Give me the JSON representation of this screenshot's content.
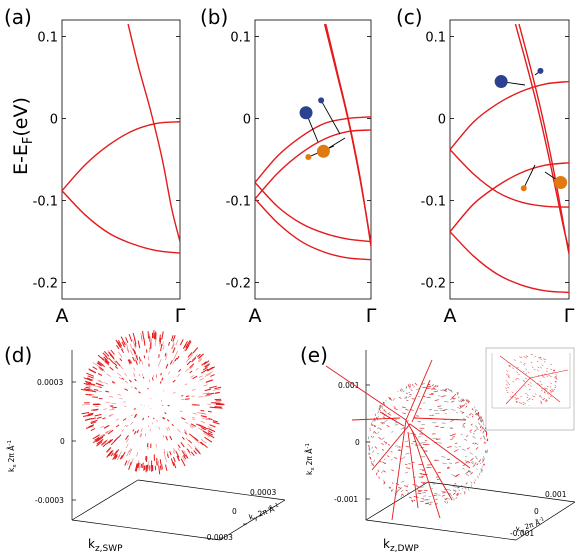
{
  "figure": {
    "panel_letters": [
      "(a)",
      "(b)",
      "(c)",
      "(d)",
      "(e)"
    ],
    "line_color": "#e41a1c",
    "blue_marker_color": "#2c4190",
    "orange_marker_color": "#e07a10"
  },
  "chart_data": [
    {
      "panel": "(a)",
      "type": "line",
      "ylabel": "E-E",
      "ylabel_sub": "F",
      "ylabel_unit": "(eV)",
      "xticks": [
        "A",
        "Γ"
      ],
      "yticks": [
        "0.1",
        "0",
        "-0.1",
        "-0.2"
      ],
      "ylim": [
        -0.22,
        0.12
      ],
      "x": [
        0,
        0.2,
        0.4,
        0.6,
        0.8,
        1.0
      ],
      "series": [
        {
          "values": [
            -0.088,
            -0.056,
            -0.032,
            -0.015,
            -0.006,
            -0.004
          ]
        },
        {
          "values": [
            -0.088,
            -0.118,
            -0.14,
            -0.153,
            -0.161,
            -0.164
          ]
        },
        {
          "x": [
            0.56,
            0.65,
            0.75,
            0.85,
            0.93,
            1.0
          ],
          "values": [
            0.115,
            0.062,
            0.01,
            -0.05,
            -0.11,
            -0.15
          ]
        }
      ]
    },
    {
      "panel": "(b)",
      "type": "line",
      "xticks": [
        "A",
        "Γ"
      ],
      "yticks": [
        "0.1",
        "0",
        "-0.1",
        "-0.2"
      ],
      "ylim": [
        -0.22,
        0.12
      ],
      "x": [
        0,
        0.2,
        0.4,
        0.6,
        0.8,
        1.0
      ],
      "series": [
        {
          "values": [
            -0.078,
            -0.045,
            -0.022,
            -0.006,
            0.0,
            0.002
          ]
        },
        {
          "values": [
            -0.098,
            -0.066,
            -0.042,
            -0.025,
            -0.016,
            -0.014
          ]
        },
        {
          "values": [
            -0.078,
            -0.108,
            -0.128,
            -0.14,
            -0.147,
            -0.15
          ]
        },
        {
          "values": [
            -0.098,
            -0.128,
            -0.15,
            -0.163,
            -0.17,
            -0.172
          ]
        },
        {
          "x": [
            0.6,
            0.7,
            0.8,
            0.9,
            1.0
          ],
          "values": [
            0.115,
            0.058,
            0.0,
            -0.07,
            -0.152
          ]
        },
        {
          "x": [
            0.61,
            0.71,
            0.81,
            0.91,
            1.0
          ],
          "values": [
            0.115,
            0.056,
            -0.004,
            -0.075,
            -0.156
          ]
        }
      ],
      "markers": [
        {
          "x": 0.44,
          "y": 0.007,
          "size": "large",
          "color": "blue"
        },
        {
          "x": 0.57,
          "y": 0.022,
          "size": "small",
          "color": "blue"
        },
        {
          "x": 0.46,
          "y": -0.047,
          "size": "small",
          "color": "orange"
        },
        {
          "x": 0.59,
          "y": -0.04,
          "size": "large",
          "color": "orange"
        }
      ]
    },
    {
      "panel": "(c)",
      "type": "line",
      "xticks": [
        "A",
        "Γ"
      ],
      "yticks": [
        "0.1",
        "0",
        "-0.1",
        "-0.2"
      ],
      "ylim": [
        -0.22,
        0.12
      ],
      "x": [
        0,
        0.2,
        0.4,
        0.6,
        0.8,
        1.0
      ],
      "series": [
        {
          "values": [
            -0.038,
            -0.004,
            0.018,
            0.033,
            0.042,
            0.045
          ]
        },
        {
          "values": [
            -0.038,
            -0.068,
            -0.09,
            -0.102,
            -0.107,
            -0.108
          ]
        },
        {
          "values": [
            -0.138,
            -0.104,
            -0.082,
            -0.066,
            -0.057,
            -0.054
          ]
        },
        {
          "values": [
            -0.138,
            -0.168,
            -0.19,
            -0.203,
            -0.21,
            -0.212
          ]
        },
        {
          "x": [
            0.55,
            0.65,
            0.75,
            0.85,
            0.95,
            1.0
          ],
          "values": [
            0.115,
            0.062,
            0.005,
            -0.06,
            -0.13,
            -0.16
          ]
        },
        {
          "x": [
            0.58,
            0.68,
            0.78,
            0.88,
            0.98,
            1.0
          ],
          "values": [
            0.115,
            0.06,
            0.0,
            -0.07,
            -0.15,
            -0.165
          ]
        }
      ],
      "markers": [
        {
          "x": 0.43,
          "y": 0.045,
          "size": "large",
          "color": "blue"
        },
        {
          "x": 0.76,
          "y": 0.058,
          "size": "small",
          "color": "blue"
        },
        {
          "x": 0.62,
          "y": -0.085,
          "size": "small",
          "color": "orange"
        },
        {
          "x": 0.93,
          "y": -0.078,
          "size": "large",
          "color": "orange"
        }
      ]
    },
    {
      "panel": "(d)",
      "type": "scatter",
      "description_labels": {
        "xlabel": "k",
        "xlabel_sub": "z,SWP",
        "ylabel": "k",
        "ylabel_sub": "y",
        "ylabel_unit": "2π Å",
        "ylabel_exp": "-1",
        "zlabel": "k",
        "zlabel_sub": "x",
        "zlabel_unit": "2π Å",
        "zlabel_exp": "-1"
      },
      "zticks": [
        "0.0003",
        "0",
        "-0.0003"
      ],
      "yticks": [
        "0.0003",
        "0",
        "-0.0003"
      ]
    },
    {
      "panel": "(e)",
      "type": "scatter",
      "description_labels": {
        "xlabel": "k",
        "xlabel_sub": "z,DWP",
        "ylabel": "k",
        "ylabel_sub": "y",
        "ylabel_unit": "2π Å",
        "ylabel_exp": "-1",
        "zlabel": "k",
        "zlabel_sub": "x",
        "zlabel_unit": "2π Å",
        "zlabel_exp": "-1"
      },
      "zticks": [
        "0.001",
        "0",
        "-0.001"
      ],
      "yticks": [
        "0.001",
        "0",
        "-0.001"
      ]
    }
  ]
}
